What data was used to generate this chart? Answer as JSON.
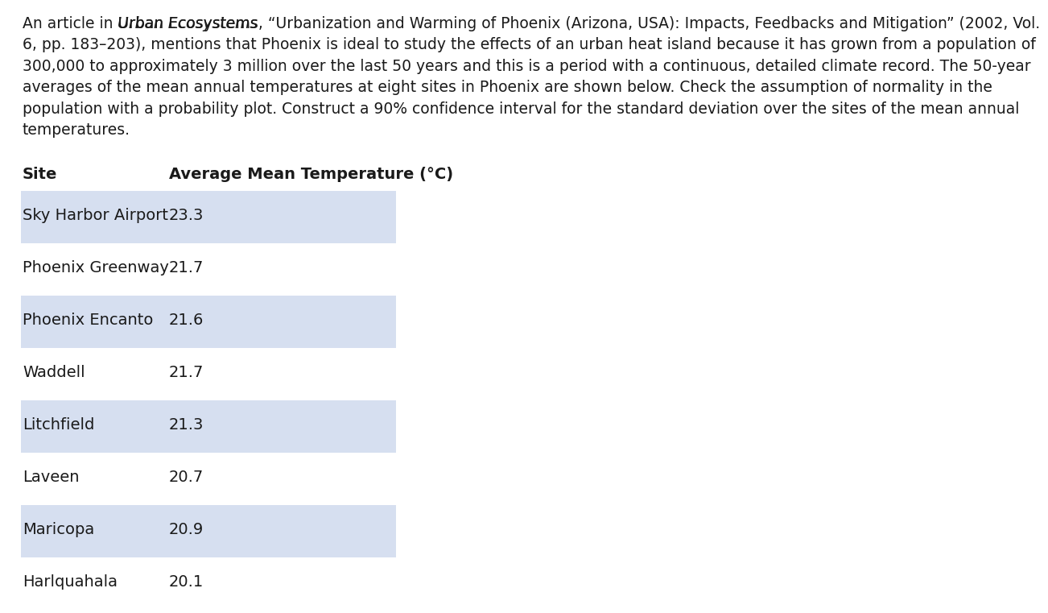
{
  "col1_header": "Site",
  "col2_header": "Average Mean Temperature (°C)",
  "rows": [
    {
      "site": "Sky Harbor Airport",
      "temp": "23.3",
      "shaded": true
    },
    {
      "site": "Phoenix Greenway",
      "temp": "21.7",
      "shaded": false
    },
    {
      "site": "Phoenix Encanto",
      "temp": "21.6",
      "shaded": true
    },
    {
      "site": "Waddell",
      "temp": "21.7",
      "shaded": false
    },
    {
      "site": "Litchfield",
      "temp": "21.3",
      "shaded": true
    },
    {
      "site": "Laveen",
      "temp": "20.7",
      "shaded": false
    },
    {
      "site": "Maricopa",
      "temp": "20.9",
      "shaded": true
    },
    {
      "site": "Harlquahala",
      "temp": "20.1",
      "shaded": false
    }
  ],
  "shade_color": "#d6dff0",
  "text_color": "#1a1a1a",
  "bg_color": "#ffffff",
  "font_size_para": 13.5,
  "font_size_header": 14.0,
  "font_size_table": 14.0,
  "para_lines": [
    "An article in Urban Ecosystems, “Urbanization and Warming of Phoenix (Arizona, USA): Impacts, Feedbacks and Mitigation” (2002, Vol.",
    "6, pp. 183–203), mentions that Phoenix is ideal to study the effects of an urban heat island because it has grown from a population of",
    "300,000 to approximately 3 million over the last 50 years and this is a period with a continuous, detailed climate record. The 50-year",
    "averages of the mean annual temperatures at eight sites in Phoenix are shown below. Check the assumption of normality in the",
    "population with a probability plot. Construct a 90% confidence interval for the standard deviation over the sites of the mean annual",
    "temperatures."
  ],
  "line1_prefix": "An article in ",
  "line1_italic": "Urban Ecosystems",
  "line1_suffix": ", “Urbanization and Warming of Phoenix (Arizona, USA): Impacts, Feedbacks and Mitigation” (2002, Vol."
}
